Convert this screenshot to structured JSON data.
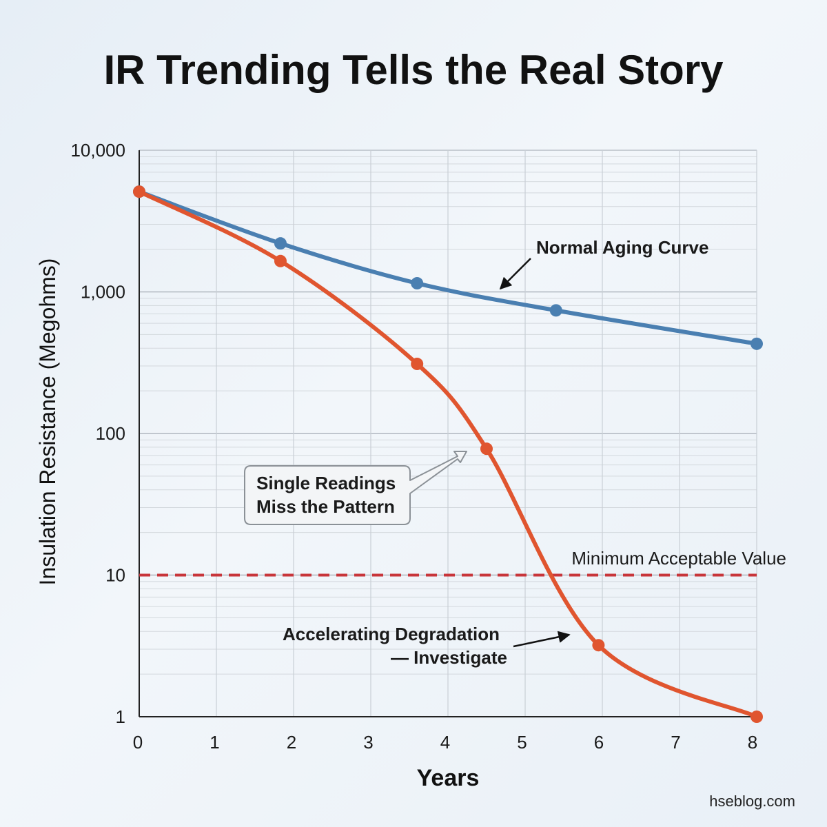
{
  "chart_data": {
    "type": "line",
    "title": "IR Trending Tells the Real Story",
    "xlabel": "Years",
    "ylabel": "Insulation Resistance (Megohms)",
    "yscale": "log",
    "xlim": [
      0,
      8
    ],
    "ylim": [
      1,
      10000
    ],
    "x_ticks": [
      "0",
      "1",
      "2",
      "3",
      "4",
      "5",
      "6",
      "7",
      "8"
    ],
    "y_ticks": [
      {
        "value": 1,
        "label": "1"
      },
      {
        "value": 10,
        "label": "10"
      },
      {
        "value": 100,
        "label": "100"
      },
      {
        "value": 1000,
        "label": "1,000"
      },
      {
        "value": 10000,
        "label": "10,000"
      }
    ],
    "grid": true,
    "series": [
      {
        "name": "Normal Aging Curve",
        "color": "#4a7fb1",
        "points": [
          {
            "x": 0,
            "y": 5100
          },
          {
            "x": 1.83,
            "y": 2200
          },
          {
            "x": 3.6,
            "y": 1150
          },
          {
            "x": 5.4,
            "y": 740
          },
          {
            "x": 8,
            "y": 430
          }
        ]
      },
      {
        "name": "Accelerating Degradation — Investigate",
        "color": "#e0552f",
        "points": [
          {
            "x": 0,
            "y": 5100
          },
          {
            "x": 1.83,
            "y": 1650
          },
          {
            "x": 3.6,
            "y": 310
          },
          {
            "x": 4.5,
            "y": 78
          },
          {
            "x": 5.95,
            "y": 3.2
          },
          {
            "x": 8,
            "y": 1
          }
        ]
      }
    ],
    "threshold": {
      "label": "Minimum Acceptable Value",
      "value": 10,
      "color": "#c8353a"
    },
    "annotations": {
      "normal": "Normal Aging Curve",
      "callout_line1": "Single Readings",
      "callout_line2": "Miss the Pattern",
      "degradation_line1": "Accelerating Degradation",
      "degradation_line2": "— Investigate"
    },
    "source": "hseblog.com"
  }
}
